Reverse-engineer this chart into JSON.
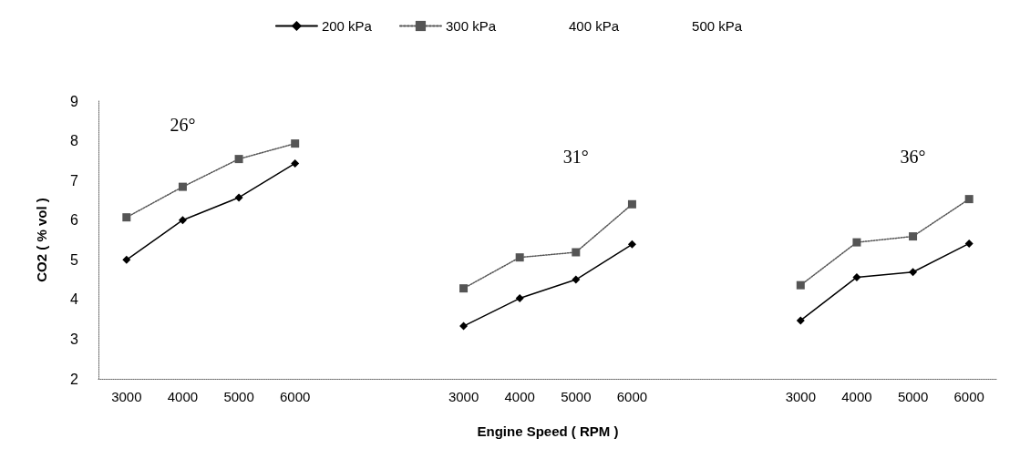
{
  "chart_data": {
    "type": "line",
    "xlabel": "Engine Speed ( RPM )",
    "ylabel": "CO2 ( % vol )",
    "categories": [
      "3000",
      "4000",
      "5000",
      "6000",
      null,
      null,
      "3000",
      "4000",
      "5000",
      "6000",
      null,
      null,
      "3000",
      "4000",
      "5000",
      "6000"
    ],
    "series": [
      {
        "name": "200 kPa",
        "color": "#000000",
        "marker": "diamond",
        "line_style": "solid",
        "values": [
          5.0,
          6.0,
          6.57,
          7.43,
          null,
          null,
          3.33,
          4.03,
          4.5,
          5.39,
          null,
          null,
          3.47,
          4.56,
          4.69,
          5.41
        ]
      },
      {
        "name": "300 kPa",
        "color": "#555555",
        "marker": "square",
        "line_style": "dotted",
        "values": [
          6.07,
          6.84,
          7.54,
          7.93,
          null,
          null,
          4.28,
          5.06,
          5.19,
          6.4,
          null,
          null,
          4.36,
          5.44,
          5.59,
          6.53
        ]
      },
      {
        "name": "400 kPa",
        "values": [
          null,
          null,
          null,
          null,
          null,
          null,
          null,
          null,
          null,
          null,
          null,
          null,
          null,
          null,
          null,
          null
        ]
      },
      {
        "name": "500 kPa",
        "values": [
          null,
          null,
          null,
          null,
          null,
          null,
          null,
          null,
          null,
          null,
          null,
          null,
          null,
          null,
          null,
          null
        ]
      }
    ],
    "annotations": [
      "26°",
      "31°",
      "36°"
    ],
    "ylim": [
      2,
      9
    ],
    "yticks": [
      2,
      3,
      4,
      5,
      6,
      7,
      8,
      9
    ],
    "grid": false,
    "legend": "top"
  }
}
